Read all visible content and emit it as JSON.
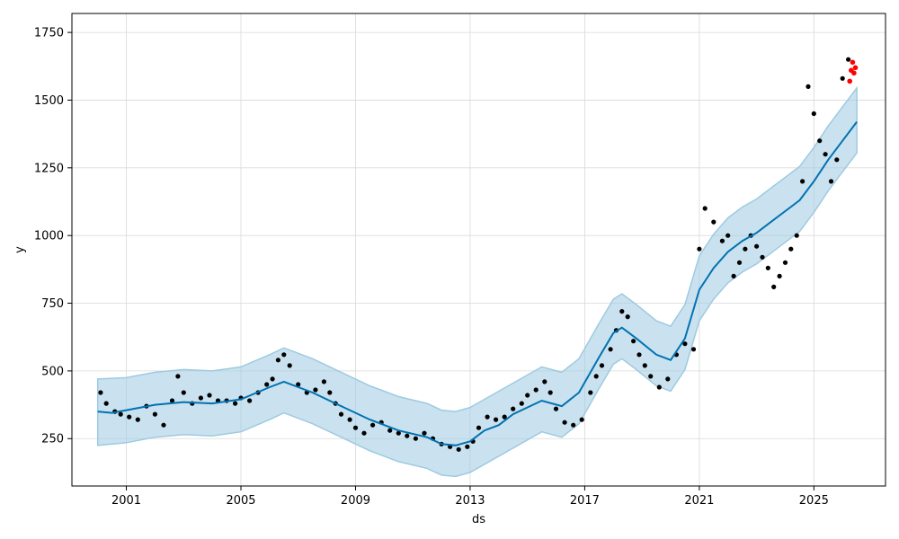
{
  "chart_data": {
    "type": "scatter",
    "title": "",
    "xlabel": "ds",
    "ylabel": "y",
    "xlim": [
      1999.1,
      2027.5
    ],
    "ylim": [
      75,
      1820
    ],
    "x_ticks": [
      {
        "value": 2001,
        "label": "2001"
      },
      {
        "value": 2005,
        "label": "2005"
      },
      {
        "value": 2009,
        "label": "2009"
      },
      {
        "value": 2013,
        "label": "2013"
      },
      {
        "value": 2017,
        "label": "2017"
      },
      {
        "value": 2021,
        "label": "2021"
      },
      {
        "value": 2025,
        "label": "2025"
      }
    ],
    "y_ticks": [
      {
        "value": 250,
        "label": "250"
      },
      {
        "value": 500,
        "label": "500"
      },
      {
        "value": 750,
        "label": "750"
      },
      {
        "value": 1000,
        "label": "1000"
      },
      {
        "value": 1250,
        "label": "1250"
      },
      {
        "value": 1500,
        "label": "1500"
      },
      {
        "value": 1750,
        "label": "1750"
      }
    ],
    "grid": true,
    "colors": {
      "observed": "#000000",
      "forecast_points": "#ff0000",
      "trend": "#0072b2",
      "interval": "#9ecae1"
    },
    "series": [
      {
        "kind": "observed-points",
        "x": [
          2000.1,
          2000.3,
          2000.6,
          2000.8,
          2001.1,
          2001.4,
          2001.7,
          2002.0,
          2002.3,
          2002.6,
          2002.8,
          2003.0,
          2003.3,
          2003.6,
          2003.9,
          2004.2,
          2004.5,
          2004.8,
          2005.0,
          2005.3,
          2005.6,
          2005.9,
          2006.1,
          2006.3,
          2006.5,
          2006.7,
          2007.0,
          2007.3,
          2007.6,
          2007.9,
          2008.1,
          2008.3,
          2008.5,
          2008.8,
          2009.0,
          2009.3,
          2009.6,
          2009.9,
          2010.2,
          2010.5,
          2010.8,
          2011.1,
          2011.4,
          2011.7,
          2012.0,
          2012.3,
          2012.6,
          2012.9,
          2013.1,
          2013.3,
          2013.6,
          2013.9,
          2014.2,
          2014.5,
          2014.8,
          2015.0,
          2015.3,
          2015.6,
          2015.8,
          2016.0,
          2016.3,
          2016.6,
          2016.9,
          2017.2,
          2017.4,
          2017.6,
          2017.9,
          2018.1,
          2018.3,
          2018.5,
          2018.7,
          2018.9,
          2019.1,
          2019.3,
          2019.6,
          2019.9,
          2020.2,
          2020.5,
          2020.8,
          2021.0,
          2021.2,
          2021.5,
          2021.8,
          2022.0,
          2022.2,
          2022.4,
          2022.6,
          2022.8,
          2023.0,
          2023.2,
          2023.4,
          2023.6,
          2023.8,
          2024.0,
          2024.2,
          2024.4,
          2024.6,
          2024.8,
          2025.0,
          2025.2,
          2025.4,
          2025.6,
          2025.8,
          2026.0,
          2026.2
        ],
        "y": [
          420,
          380,
          350,
          340,
          330,
          320,
          370,
          340,
          300,
          390,
          480,
          420,
          380,
          400,
          410,
          390,
          390,
          380,
          400,
          390,
          420,
          450,
          470,
          540,
          560,
          520,
          450,
          420,
          430,
          460,
          420,
          380,
          340,
          320,
          290,
          270,
          300,
          310,
          280,
          270,
          260,
          250,
          270,
          250,
          230,
          220,
          210,
          220,
          240,
          290,
          330,
          320,
          330,
          360,
          380,
          410,
          430,
          460,
          420,
          360,
          310,
          300,
          320,
          420,
          480,
          520,
          580,
          650,
          720,
          700,
          610,
          560,
          520,
          480,
          440,
          470,
          560,
          600,
          580,
          950,
          1100,
          1050,
          980,
          1000,
          850,
          900,
          950,
          1000,
          960,
          920,
          880,
          810,
          850,
          900,
          950,
          1000,
          1200,
          1550,
          1450,
          1350,
          1300,
          1200,
          1280,
          1580,
          1650
        ],
        "ms": 2.6
      },
      {
        "kind": "future-points",
        "x": [
          2026.25,
          2026.3,
          2026.35,
          2026.4,
          2026.45
        ],
        "y": [
          1570,
          1610,
          1640,
          1600,
          1620
        ],
        "ms": 2.8
      },
      {
        "kind": "trend-line",
        "x": [
          2000.0,
          2000.5,
          2001.0,
          2001.5,
          2002.0,
          2003.0,
          2004.0,
          2005.0,
          2006.0,
          2006.5,
          2007.5,
          2008.5,
          2009.5,
          2010.5,
          2011.5,
          2012.0,
          2012.5,
          2013.0,
          2013.5,
          2014.0,
          2014.5,
          2015.5,
          2016.2,
          2016.8,
          2017.5,
          2018.0,
          2018.3,
          2018.8,
          2019.5,
          2020.0,
          2020.5,
          2021.0,
          2021.5,
          2022.0,
          2022.5,
          2023.0,
          2023.5,
          2024.0,
          2024.5,
          2025.0,
          2025.5,
          2026.0,
          2026.5
        ],
        "y": [
          350,
          345,
          355,
          365,
          375,
          385,
          380,
          395,
          440,
          460,
          420,
          370,
          320,
          280,
          255,
          230,
          225,
          240,
          280,
          300,
          340,
          390,
          370,
          420,
          550,
          640,
          660,
          620,
          560,
          540,
          620,
          800,
          880,
          940,
          980,
          1010,
          1050,
          1090,
          1130,
          1200,
          1280,
          1350,
          1420
        ]
      },
      {
        "kind": "interval-upper",
        "x": [
          2000.0,
          2001.0,
          2002.0,
          2003.0,
          2004.0,
          2005.0,
          2006.0,
          2006.5,
          2007.5,
          2008.5,
          2009.5,
          2010.5,
          2011.5,
          2012.0,
          2012.5,
          2013.0,
          2014.0,
          2015.5,
          2016.2,
          2016.8,
          2017.5,
          2018.0,
          2018.3,
          2018.8,
          2019.5,
          2020.0,
          2020.5,
          2021.0,
          2021.5,
          2022.0,
          2022.5,
          2023.0,
          2023.5,
          2024.0,
          2024.5,
          2025.0,
          2025.5,
          2026.0,
          2026.5
        ],
        "y": [
          470,
          475,
          495,
          505,
          500,
          515,
          560,
          585,
          545,
          495,
          445,
          405,
          380,
          355,
          350,
          365,
          425,
          515,
          495,
          545,
          675,
          765,
          785,
          745,
          685,
          665,
          745,
          925,
          1005,
          1065,
          1105,
          1135,
          1175,
          1215,
          1255,
          1325,
          1405,
          1475,
          1545
        ]
      },
      {
        "kind": "interval-lower",
        "x": [
          2000.0,
          2001.0,
          2002.0,
          2003.0,
          2004.0,
          2005.0,
          2006.0,
          2006.5,
          2007.5,
          2008.5,
          2009.5,
          2010.5,
          2011.5,
          2012.0,
          2012.5,
          2013.0,
          2014.0,
          2015.5,
          2016.2,
          2016.8,
          2017.5,
          2018.0,
          2018.3,
          2018.8,
          2019.5,
          2020.0,
          2020.5,
          2021.0,
          2021.5,
          2022.0,
          2022.5,
          2023.0,
          2023.5,
          2024.0,
          2024.5,
          2025.0,
          2025.5,
          2026.0,
          2026.5
        ],
        "y": [
          225,
          235,
          255,
          265,
          260,
          275,
          320,
          345,
          305,
          255,
          205,
          165,
          140,
          115,
          110,
          125,
          185,
          275,
          255,
          305,
          435,
          525,
          545,
          505,
          445,
          425,
          505,
          685,
          765,
          825,
          865,
          895,
          935,
          975,
          1015,
          1085,
          1165,
          1235,
          1305
        ]
      }
    ]
  }
}
